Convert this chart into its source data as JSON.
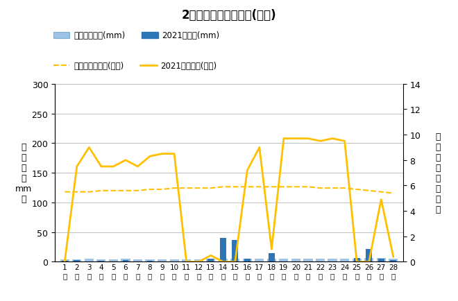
{
  "title": "2月降水量・日照時間(日別)",
  "days": [
    1,
    2,
    3,
    4,
    5,
    6,
    7,
    8,
    9,
    10,
    11,
    12,
    13,
    14,
    15,
    16,
    17,
    18,
    19,
    20,
    21,
    22,
    23,
    24,
    25,
    26,
    27,
    28
  ],
  "precip_2021": [
    2,
    3,
    0,
    2,
    0,
    3,
    0,
    2,
    0,
    0,
    0,
    0,
    5,
    40,
    37,
    5,
    0,
    15,
    0,
    0,
    0,
    0,
    0,
    0,
    6,
    22,
    5,
    3
  ],
  "precip_avg": [
    4,
    4,
    5,
    4,
    4,
    5,
    4,
    4,
    4,
    4,
    4,
    4,
    5,
    5,
    5,
    5,
    5,
    5,
    5,
    5,
    5,
    5,
    5,
    5,
    5,
    6,
    6,
    5
  ],
  "sunshine_2021": [
    0,
    7.5,
    9.0,
    7.5,
    7.5,
    8.0,
    7.5,
    8.3,
    8.5,
    8.5,
    0,
    0,
    0.5,
    0,
    0,
    7.2,
    9.0,
    1.0,
    9.7,
    9.7,
    9.7,
    9.5,
    9.7,
    9.5,
    0,
    0,
    4.9,
    0.4
  ],
  "sunshine_avg": [
    5.5,
    5.5,
    5.5,
    5.6,
    5.6,
    5.6,
    5.6,
    5.7,
    5.7,
    5.8,
    5.8,
    5.8,
    5.8,
    5.9,
    5.9,
    5.9,
    5.9,
    5.9,
    5.9,
    5.9,
    5.9,
    5.8,
    5.8,
    5.8,
    5.7,
    5.6,
    5.5,
    5.4
  ],
  "precip_color": "#2E75B6",
  "precip_avg_color": "#9DC3E6",
  "sunshine_color": "#FFC000",
  "sunshine_avg_color": "#FFC000",
  "ylim_left": [
    0,
    300
  ],
  "ylim_right": [
    0,
    14
  ],
  "yticks_left": [
    0,
    50,
    100,
    150,
    200,
    250,
    300
  ],
  "yticks_right": [
    0,
    2,
    4,
    6,
    8,
    10,
    12,
    14
  ],
  "legend_precip_avg": "降水量平年値(mm)",
  "legend_precip_2021": "2021降水量(mm)",
  "legend_sunshine_avg": "日照時間平年値(時間)",
  "legend_sunshine_2021": "2021日照時間(時間)",
  "bg_color": "#FFFFFF",
  "plot_bg_color": "#FFFFFF"
}
